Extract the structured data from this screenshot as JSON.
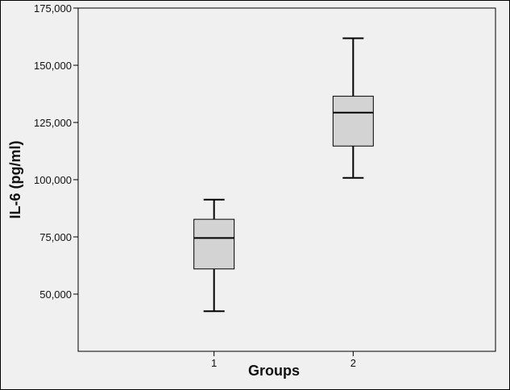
{
  "chart_data": {
    "type": "boxplot",
    "title": "",
    "xlabel": "Groups",
    "ylabel": "IL-6 (pg/ml)",
    "ylim": [
      25000,
      175000
    ],
    "yticks": [
      50000,
      75000,
      100000,
      125000,
      150000,
      175000
    ],
    "ytick_labels": [
      "50,000",
      "75,000",
      "100,000",
      "125,000",
      "150,000",
      "175,000"
    ],
    "categories": [
      "1",
      "2"
    ],
    "boxes": [
      {
        "category": "1",
        "min": 42500,
        "q1": 61000,
        "median": 74500,
        "q3": 82700,
        "max": 91300
      },
      {
        "category": "2",
        "min": 100800,
        "q1": 114700,
        "median": 129300,
        "q3": 136500,
        "max": 161800
      }
    ],
    "grid": false,
    "colors": {
      "box_fill": "#d3d3d3",
      "plot_bg": "#f0f0f0",
      "frame_bg": "#f0f0f0",
      "line": "#000000"
    }
  }
}
